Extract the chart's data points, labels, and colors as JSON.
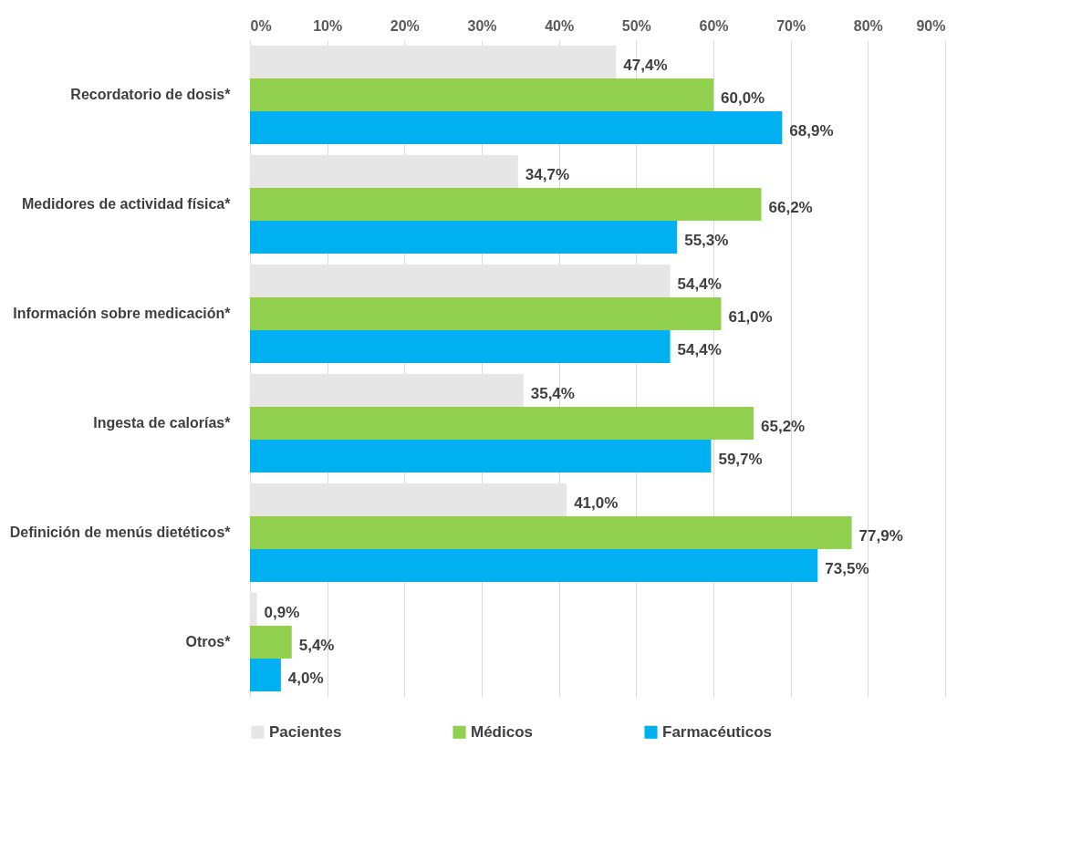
{
  "chart_data": {
    "type": "bar",
    "orientation": "horizontal",
    "categories": [
      "Recordatorio de dosis*",
      "Medidores de actividad física*",
      "Información sobre medicación*",
      "Ingesta de calorías*",
      "Definición de menús dietéticos*",
      "Otros*"
    ],
    "series": [
      {
        "name": "Pacientes",
        "color": "#e7e6e6",
        "values": [
          47.4,
          34.7,
          54.4,
          35.4,
          41.0,
          0.9
        ],
        "value_labels": [
          "47,4%",
          "34,7%",
          "54,4%",
          "35,4%",
          "41,0%",
          "0,9%"
        ]
      },
      {
        "name": "Médicos",
        "color": "#92d050",
        "values": [
          60.0,
          66.2,
          61.0,
          65.2,
          77.9,
          5.4
        ],
        "value_labels": [
          "60,0%",
          "66,2%",
          "61,0%",
          "65,2%",
          "77,9%",
          "5,4%"
        ]
      },
      {
        "name": "Farmacéuticos",
        "color": "#00b0f0",
        "values": [
          68.9,
          55.3,
          54.4,
          59.7,
          73.5,
          4.0
        ],
        "value_labels": [
          "68,9%",
          "55,3%",
          "54,4%",
          "59,7%",
          "73,5%",
          "4,0%"
        ]
      }
    ],
    "xlim": [
      0,
      90
    ],
    "xticks": [
      {
        "value": 0,
        "label": "0%"
      },
      {
        "value": 10,
        "label": "10%"
      },
      {
        "value": 20,
        "label": "20%"
      },
      {
        "value": 30,
        "label": "30%"
      },
      {
        "value": 40,
        "label": "40%"
      },
      {
        "value": 50,
        "label": "50%"
      },
      {
        "value": 60,
        "label": "60%"
      },
      {
        "value": 70,
        "label": "70%"
      },
      {
        "value": 80,
        "label": "80%"
      },
      {
        "value": 90,
        "label": "90%"
      }
    ],
    "grid": "x",
    "legend": "bottom"
  }
}
